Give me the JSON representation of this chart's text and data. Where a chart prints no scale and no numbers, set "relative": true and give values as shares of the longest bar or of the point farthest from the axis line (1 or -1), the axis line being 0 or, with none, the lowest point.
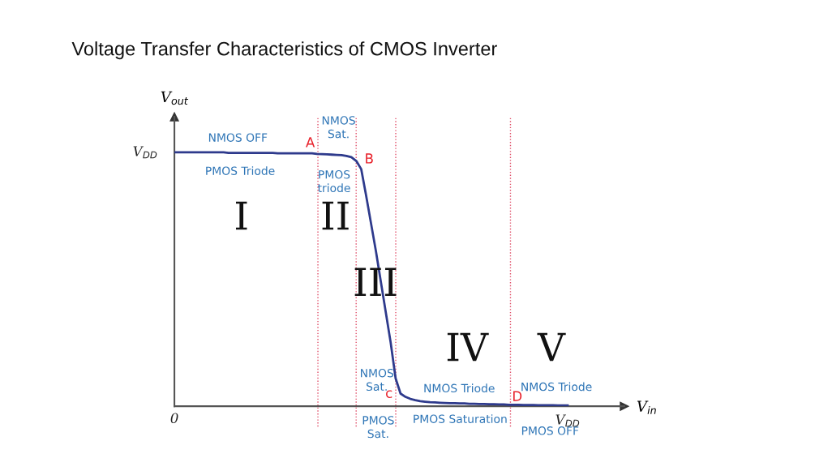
{
  "chart_data": {
    "type": "line",
    "title": "Voltage Transfer Characteristics of CMOS Inverter",
    "xlabel": "V$_{in}$",
    "ylabel": "V$_{out}$",
    "relative": true,
    "grid": false,
    "legend": false,
    "marker": "none",
    "line_style": "solid",
    "series": [
      {
        "color": "#2e3a8c",
        "values": [
          1.0,
          1.0,
          1.0,
          1.0,
          1.0,
          1.0,
          1.0,
          1.0,
          1.0,
          1.0,
          1.0,
          0.998,
          0.998,
          0.998,
          0.998,
          0.998,
          0.998,
          0.998,
          0.998,
          0.998,
          0.998,
          0.996,
          0.996,
          0.996,
          0.996,
          0.996,
          0.996,
          0.996,
          0.996,
          0.994,
          0.993,
          0.992,
          0.991,
          0.99,
          0.989,
          0.986,
          0.981,
          0.966,
          0.934,
          0.83,
          0.72,
          0.61,
          0.49,
          0.37,
          0.25,
          0.11,
          0.05,
          0.037,
          0.029,
          0.024,
          0.02,
          0.018,
          0.016,
          0.015,
          0.014,
          0.013,
          0.012,
          0.012,
          0.011,
          0.011,
          0.01,
          0.01,
          0.009,
          0.009,
          0.008,
          0.008,
          0.007,
          0.007,
          0.006,
          0.006,
          0.006,
          0.005,
          0.005,
          0.005,
          0.004,
          0.004,
          0.004,
          0.004,
          0.003,
          0.003,
          0.003
        ]
      }
    ],
    "categories": [
      null,
      null,
      null,
      null,
      null,
      null,
      null,
      null,
      null,
      null,
      null,
      null,
      null,
      null,
      null,
      null,
      null,
      null,
      null,
      null,
      null,
      null,
      null,
      null,
      null,
      null,
      null,
      null,
      null,
      null,
      null,
      null,
      null,
      null,
      null,
      null,
      null,
      null,
      null,
      null,
      null,
      null,
      null,
      null,
      null,
      null,
      null,
      null,
      null,
      null,
      null,
      null,
      null,
      null,
      null,
      null,
      null,
      null,
      null,
      null,
      null,
      null,
      null,
      null,
      null,
      null,
      null,
      null,
      null,
      null,
      null,
      null,
      null,
      null,
      null,
      null,
      null,
      null,
      null,
      null,
      null
    ],
    "annotations": [
      "A",
      "B",
      "c",
      "D",
      "I",
      "II",
      "III",
      "IV",
      "V",
      "NMOS OFF",
      "PMOS Triode",
      "NMOS\nSat.",
      "PMOS\ntriode",
      "NMOS\nSat.",
      "NMOS Triode",
      "NMOS Triode",
      "PMOS\nSat.",
      "PMOS Saturation",
      "PMOS OFF",
      "0",
      "V$_{DD}$",
      "V$_{DD}$"
    ]
  }
}
